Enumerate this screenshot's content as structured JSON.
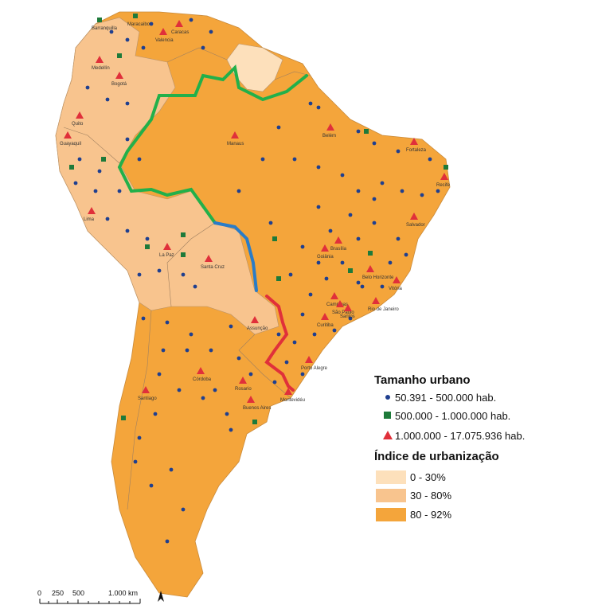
{
  "legend": {
    "size_title": "Tamanho urbano",
    "size_items": [
      "50.391 - 500.000 hab.",
      "500.000 - 1.000.000 hab.",
      "1.000.000 - 17.075.936 hab."
    ],
    "index_title": "Índice de urbanização",
    "index_items": [
      "0 - 30%",
      "30 - 80%",
      "80 - 92%"
    ]
  },
  "scale": {
    "labels": [
      "0",
      "250",
      "500",
      "1.000 km"
    ]
  },
  "cities": [
    "Barranquilla",
    "Maracaibo",
    "Caracas",
    "Valencia",
    "Medellín",
    "Bogotá",
    "Quito",
    "Guayaquil",
    "Lima",
    "Manaus",
    "Belém",
    "Fortaleza",
    "Recife",
    "Salvador",
    "Brasília",
    "Goiânia",
    "Belo Horizonte",
    "Vitória",
    "Campinas",
    "São Paulo",
    "Rio de Janeiro",
    "Santos",
    "Curitiba",
    "Porto Alegre",
    "Assunção",
    "La Paz",
    "Santa Cruz",
    "Santiago",
    "Córdoba",
    "Rosario",
    "Buenos Aires",
    "Montevidéu"
  ]
}
